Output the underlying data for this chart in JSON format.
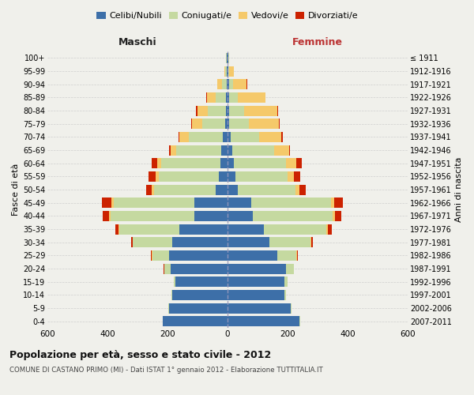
{
  "age_groups": [
    "0-4",
    "5-9",
    "10-14",
    "15-19",
    "20-24",
    "25-29",
    "30-34",
    "35-39",
    "40-44",
    "45-49",
    "50-54",
    "55-59",
    "60-64",
    "65-69",
    "70-74",
    "75-79",
    "80-84",
    "85-89",
    "90-94",
    "95-99",
    "100+"
  ],
  "birth_years": [
    "2007-2011",
    "2002-2006",
    "1997-2001",
    "1992-1996",
    "1987-1991",
    "1982-1986",
    "1977-1981",
    "1972-1976",
    "1967-1971",
    "1962-1966",
    "1957-1961",
    "1952-1956",
    "1947-1951",
    "1942-1946",
    "1937-1941",
    "1932-1936",
    "1927-1931",
    "1922-1926",
    "1917-1921",
    "1912-1916",
    "≤ 1911"
  ],
  "male": {
    "celibi": [
      215,
      195,
      185,
      175,
      190,
      195,
      185,
      160,
      110,
      110,
      40,
      30,
      25,
      20,
      15,
      8,
      5,
      4,
      3,
      2,
      2
    ],
    "coniugati": [
      2,
      2,
      3,
      5,
      20,
      55,
      130,
      200,
      280,
      270,
      205,
      200,
      195,
      150,
      115,
      75,
      60,
      35,
      15,
      5,
      2
    ],
    "vedovi": [
      0,
      0,
      0,
      0,
      1,
      2,
      2,
      3,
      5,
      8,
      8,
      10,
      15,
      20,
      30,
      35,
      35,
      30,
      15,
      3,
      1
    ],
    "divorziati": [
      0,
      0,
      0,
      0,
      1,
      2,
      5,
      12,
      22,
      30,
      18,
      22,
      18,
      4,
      3,
      2,
      5,
      1,
      1,
      0,
      0
    ]
  },
  "female": {
    "nubili": [
      240,
      210,
      190,
      190,
      195,
      165,
      140,
      120,
      85,
      80,
      35,
      25,
      20,
      15,
      10,
      5,
      5,
      5,
      4,
      2,
      2
    ],
    "coniugate": [
      2,
      3,
      5,
      10,
      25,
      65,
      135,
      210,
      265,
      265,
      190,
      175,
      175,
      140,
      95,
      65,
      50,
      30,
      15,
      4,
      2
    ],
    "vedove": [
      0,
      0,
      0,
      0,
      1,
      2,
      3,
      5,
      8,
      10,
      15,
      20,
      35,
      50,
      75,
      100,
      110,
      90,
      45,
      15,
      2
    ],
    "divorziate": [
      0,
      0,
      0,
      0,
      1,
      2,
      5,
      12,
      22,
      30,
      20,
      22,
      18,
      4,
      3,
      3,
      3,
      1,
      1,
      0,
      0
    ]
  },
  "colors": {
    "celibi": "#3d6fa8",
    "coniugati": "#c5d9a0",
    "vedovi": "#f5c96a",
    "divorziati": "#cc2200"
  },
  "xlim": 600,
  "title": "Popolazione per età, sesso e stato civile - 2012",
  "subtitle": "COMUNE DI CASTANO PRIMO (MI) - Dati ISTAT 1° gennaio 2012 - Elaborazione TUTTITALIA.IT",
  "xlabel_left": "Maschi",
  "xlabel_right": "Femmine",
  "ylabel_left": "Fasce di età",
  "ylabel_right": "Anni di nascita",
  "bg_color": "#f0f0eb",
  "grid_color": "#cccccc"
}
